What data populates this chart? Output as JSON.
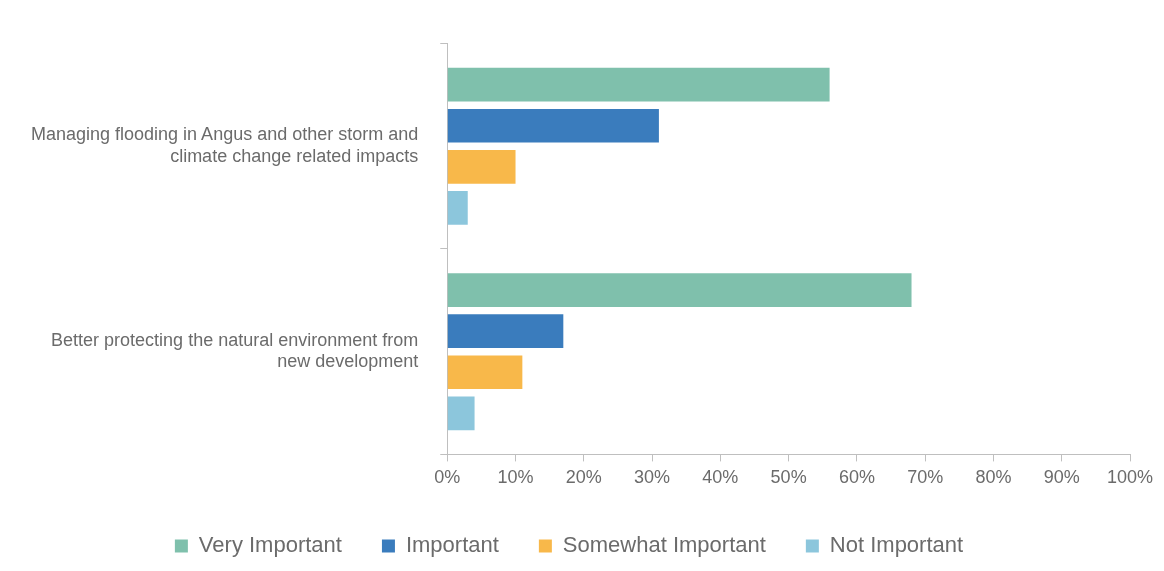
{
  "chart_data": {
    "type": "bar",
    "orientation": "horizontal",
    "categories": [
      "Managing flooding in Angus and other storm and climate change related impacts",
      "Better protecting the natural environment from new development"
    ],
    "series": [
      {
        "name": "Very Important",
        "color": "#7fc0ac",
        "values": [
          56,
          68
        ]
      },
      {
        "name": "Important",
        "color": "#3a7cbd",
        "values": [
          31,
          17
        ]
      },
      {
        "name": "Somewhat Important",
        "color": "#f8b84a",
        "values": [
          10,
          11
        ]
      },
      {
        "name": "Not Important",
        "color": "#8cc6dc",
        "values": [
          3,
          4
        ]
      }
    ],
    "xlim": [
      0,
      100
    ],
    "xticks": [
      {
        "value": 0,
        "label": "0%"
      },
      {
        "value": 10,
        "label": "10%"
      },
      {
        "value": 20,
        "label": "20%"
      },
      {
        "value": 30,
        "label": "30%"
      },
      {
        "value": 40,
        "label": "40%"
      },
      {
        "value": 50,
        "label": "50%"
      },
      {
        "value": 60,
        "label": "60%"
      },
      {
        "value": 70,
        "label": "70%"
      },
      {
        "value": 80,
        "label": "80%"
      },
      {
        "value": 90,
        "label": "90%"
      },
      {
        "value": 100,
        "label": "100%"
      }
    ],
    "legend": "bottom"
  }
}
